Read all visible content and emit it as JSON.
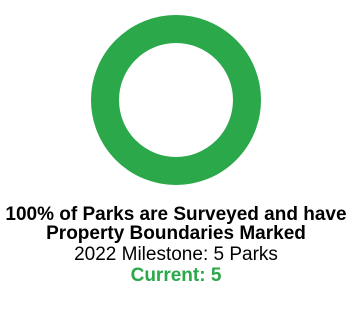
{
  "chart_data": {
    "type": "pie",
    "variant": "donut",
    "categories": [
      "Surveyed"
    ],
    "values": [
      100
    ],
    "percent": 100,
    "colors": {
      "ring": "#2aa84a",
      "remainder": "#e6e6e6",
      "current_text": "#2aa84a"
    },
    "headline": "100% of Parks are Surveyed and have Property Boundaries Marked",
    "milestone": "2022 Milestone: 5 Parks",
    "current": "Current: 5"
  }
}
